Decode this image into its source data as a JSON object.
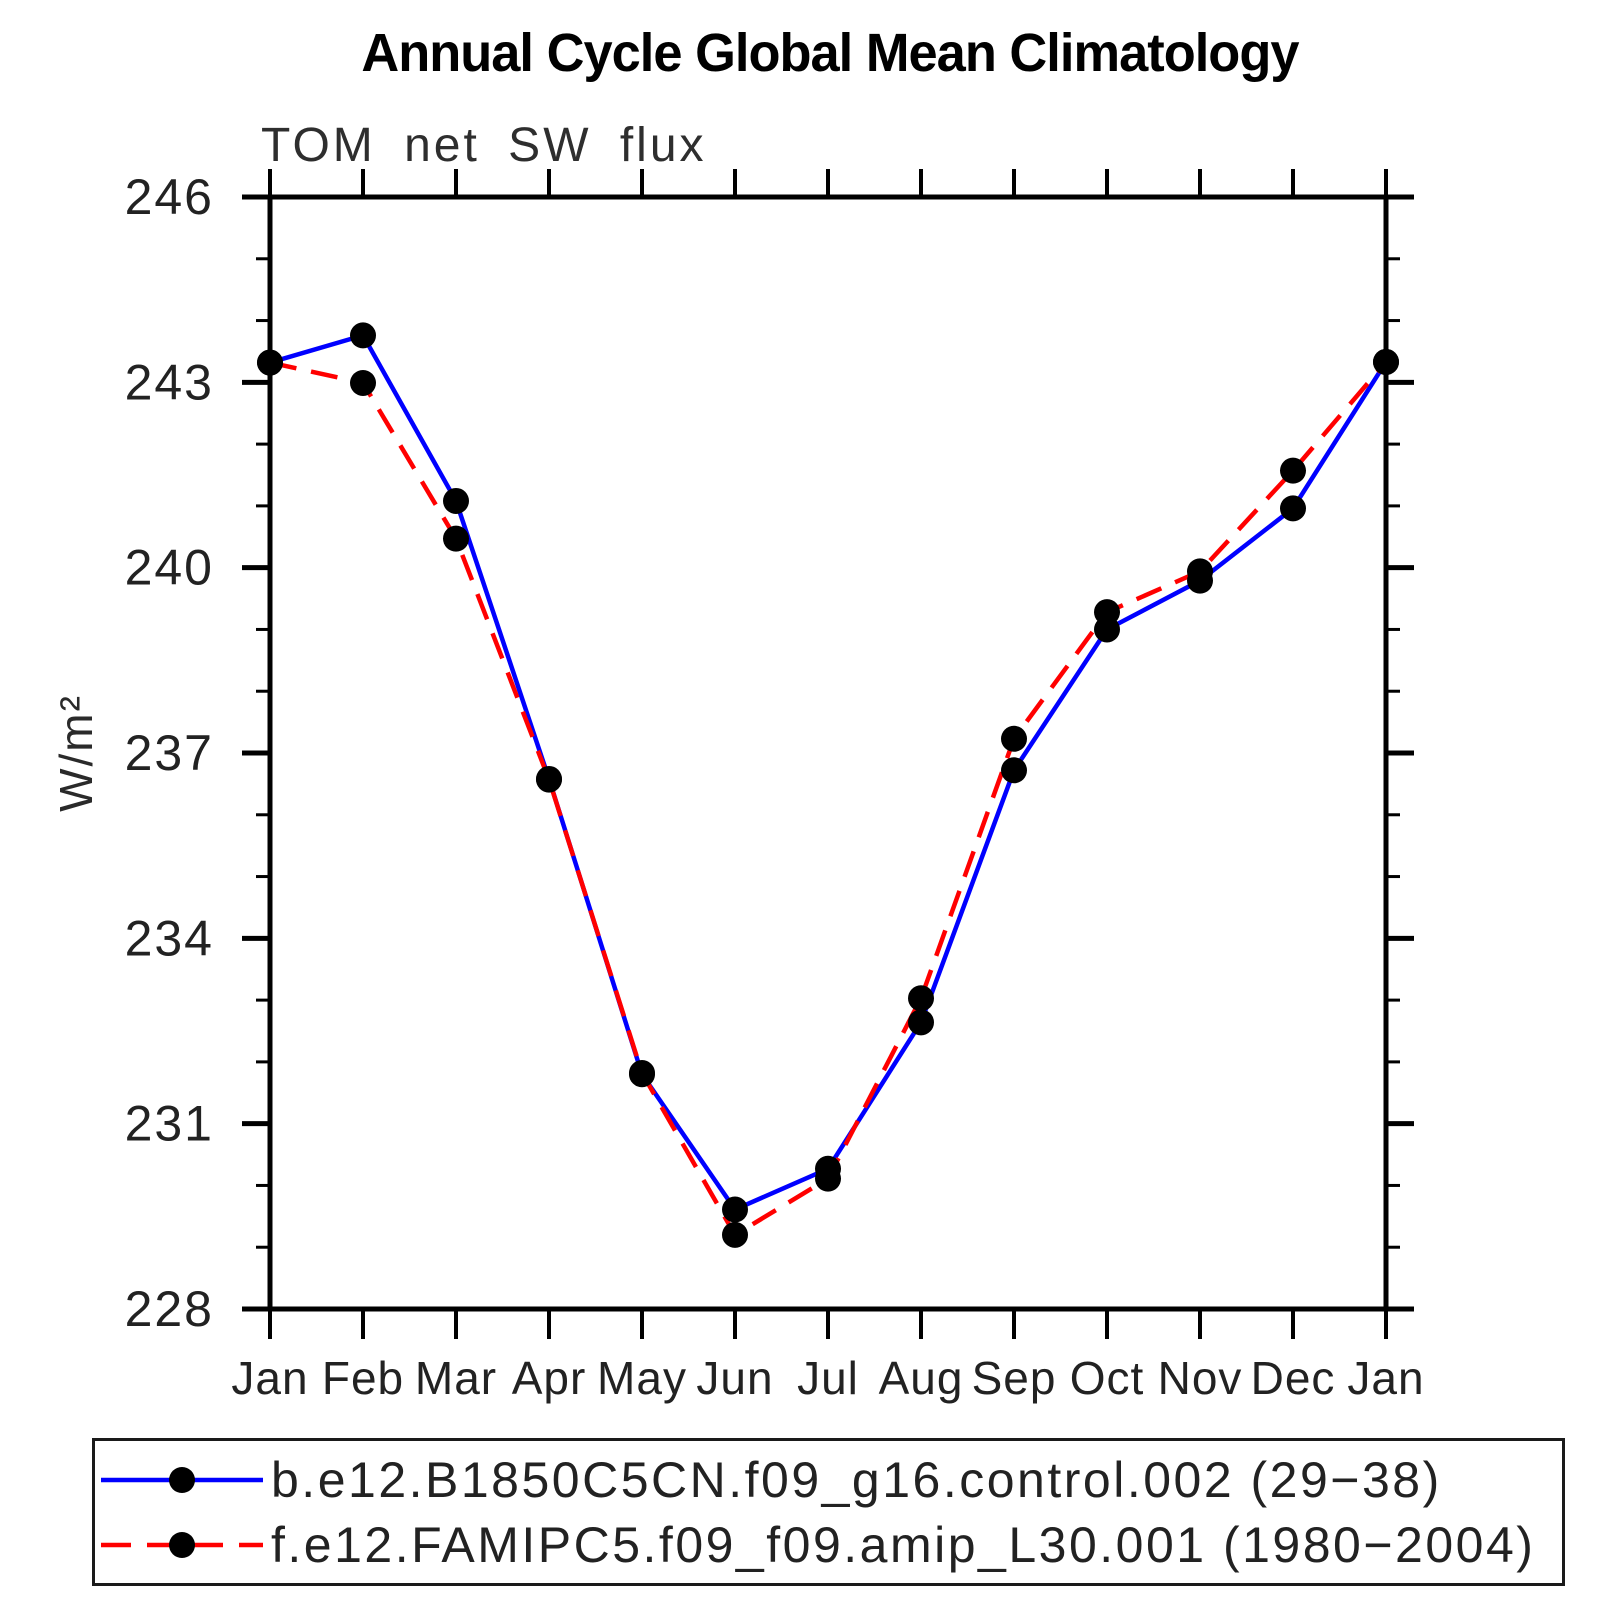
{
  "chart_data": {
    "type": "line",
    "title": "Annual Cycle Global Mean Climatology",
    "subtitle": "TOM net SW flux",
    "ylabel": "W/m²",
    "xlabel": "",
    "x_categories": [
      "Jan",
      "Feb",
      "Mar",
      "Apr",
      "May",
      "Jun",
      "Jul",
      "Aug",
      "Sep",
      "Oct",
      "Nov",
      "Dec",
      "Jan"
    ],
    "ylim": [
      228,
      246
    ],
    "ytick_major": [
      228,
      231,
      234,
      237,
      240,
      243,
      246
    ],
    "ytick_minor_step": 1,
    "grid": false,
    "legend_position": "bottom",
    "axis_color": "#000000",
    "series": [
      {
        "name": "b.e12.B1850C5CN.f09_g16.control.002 (29−38)",
        "color": "#0000ff",
        "line_style": "solid",
        "marker": "circle",
        "marker_color": "#000000",
        "values": [
          243.32,
          243.76,
          241.08,
          236.58,
          231.8,
          229.61,
          230.27,
          232.64,
          236.72,
          239.0,
          239.79,
          240.96,
          243.33
        ]
      },
      {
        "name": "f.e12.FAMIPC5.f09_f09.amip_L30.001 (1980−2004)",
        "color": "#ff0000",
        "line_style": "dashed",
        "marker": "circle",
        "marker_color": "#000000",
        "values": [
          243.32,
          242.99,
          240.47,
          236.57,
          231.82,
          229.2,
          230.11,
          233.03,
          237.23,
          239.28,
          239.94,
          241.57,
          243.33
        ]
      }
    ]
  }
}
